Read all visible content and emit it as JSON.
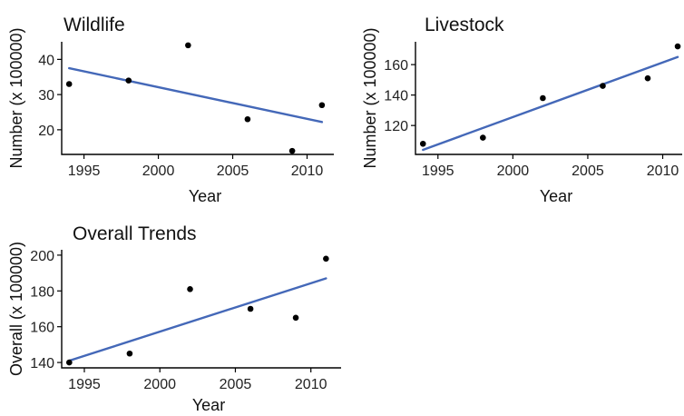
{
  "chart_data": [
    {
      "type": "scatter",
      "title": "Wildlife",
      "xlabel": "Year",
      "ylabel": "Number (x 100000)",
      "x": [
        1994,
        1998,
        2002,
        2006,
        2009,
        2011
      ],
      "y": [
        33,
        34,
        44,
        23,
        14,
        27
      ],
      "trend_line": {
        "x": [
          1994,
          2011
        ],
        "y": [
          37.5,
          22.2
        ]
      },
      "xticks": [
        1995,
        2000,
        2005,
        2010
      ],
      "yticks": [
        20,
        30,
        40
      ],
      "xlim": [
        1993.5,
        2011.8
      ],
      "ylim": [
        13,
        45
      ],
      "grid": false
    },
    {
      "type": "scatter",
      "title": "Livestock",
      "xlabel": "Year",
      "ylabel": "Number (x 100000)",
      "x": [
        1994,
        1998,
        2002,
        2006,
        2009,
        2011
      ],
      "y": [
        108,
        112,
        138,
        146,
        151,
        172
      ],
      "trend_line": {
        "x": [
          1994,
          2011
        ],
        "y": [
          104,
          165
        ]
      },
      "xticks": [
        1995,
        2000,
        2005,
        2010
      ],
      "yticks": [
        120,
        140,
        160
      ],
      "xlim": [
        1993.5,
        2011.3
      ],
      "ylim": [
        101,
        175
      ],
      "grid": false
    },
    {
      "type": "scatter",
      "title": "Overall Trends",
      "xlabel": "Year",
      "ylabel": "Overall (x 100000)",
      "x": [
        1994,
        1998,
        2002,
        2006,
        2009,
        2011
      ],
      "y": [
        140,
        145,
        181,
        170,
        165,
        198
      ],
      "trend_line": {
        "x": [
          1994,
          2011
        ],
        "y": [
          141,
          187
        ]
      },
      "xticks": [
        1995,
        2000,
        2005,
        2010
      ],
      "yticks": [
        140,
        160,
        180,
        200
      ],
      "xlim": [
        1993.5,
        2012
      ],
      "ylim": [
        137,
        203
      ],
      "grid": false
    }
  ]
}
